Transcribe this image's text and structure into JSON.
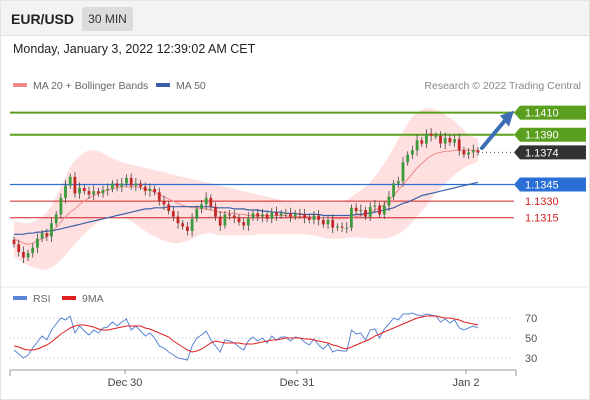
{
  "header": {
    "symbol": "EUR/USD",
    "timeframe": "30 MIN"
  },
  "datetime": "Monday, January 3, 2022 12:39:02 AM CET",
  "legend": {
    "ma20": {
      "label": "MA 20 + Bollinger Bands",
      "color": "#f08a8a"
    },
    "ma50": {
      "label": "MA 50",
      "color": "#3a5fa8"
    },
    "rsi": {
      "label": "RSI",
      "color": "#5b84d6"
    },
    "ma9": {
      "label": "9MA",
      "color": "#e02020"
    }
  },
  "credit": "Research © 2022 Trading Central",
  "chart_data": {
    "type": "candlestick",
    "y_range": [
      1.1256,
      1.1425
    ],
    "levels": [
      {
        "value": 1.141,
        "label": "1.1410",
        "kind": "resistance",
        "color": "#5aa01e"
      },
      {
        "value": 1.139,
        "label": "1.1390",
        "kind": "resistance",
        "color": "#5aa01e"
      },
      {
        "value": 1.1374,
        "label": "1.1374",
        "kind": "last",
        "color": "#333333"
      },
      {
        "value": 1.1345,
        "label": "1.1345",
        "kind": "pivot",
        "color": "#2a6fd6"
      },
      {
        "value": 1.133,
        "label": "1.1330",
        "kind": "support",
        "color": "#d42020"
      },
      {
        "value": 1.1315,
        "label": "1.1315",
        "kind": "support",
        "color": "#d42020"
      }
    ],
    "closes": [
      1.1291,
      1.1284,
      1.1279,
      1.1283,
      1.1288,
      1.1296,
      1.1301,
      1.1298,
      1.131,
      1.1318,
      1.1333,
      1.1344,
      1.1352,
      1.1337,
      1.1342,
      1.1339,
      1.1336,
      1.1339,
      1.1337,
      1.134,
      1.1341,
      1.1346,
      1.1343,
      1.1346,
      1.1351,
      1.1344,
      1.1346,
      1.1343,
      1.1339,
      1.1341,
      1.1338,
      1.133,
      1.1327,
      1.1321,
      1.1316,
      1.131,
      1.1307,
      1.1303,
      1.1314,
      1.1323,
      1.1327,
      1.1333,
      1.1325,
      1.1316,
      1.1308,
      1.1318,
      1.1317,
      1.1315,
      1.1311,
      1.1308,
      1.1315,
      1.1319,
      1.1316,
      1.1318,
      1.1314,
      1.132,
      1.1317,
      1.1319,
      1.1319,
      1.1316,
      1.1319,
      1.1318,
      1.1315,
      1.1313,
      1.1317,
      1.1313,
      1.1309,
      1.1313,
      1.1306,
      1.1307,
      1.1306,
      1.1306,
      1.1324,
      1.1321,
      1.1322,
      1.1316,
      1.1325,
      1.1326,
      1.1318,
      1.1326,
      1.1334,
      1.1346,
      1.1348,
      1.1365,
      1.1372,
      1.1376,
      1.1385,
      1.1382,
      1.1391,
      1.1389,
      1.1389,
      1.1382,
      1.1387,
      1.1383,
      1.1386,
      1.1376,
      1.1372,
      1.1374,
      1.1376,
      1.1374
    ],
    "ma20": [
      1.1296,
      1.1294,
      1.1292,
      1.1291,
      1.1292,
      1.1294,
      1.1296,
      1.1298,
      1.1302,
      1.1306,
      1.1311,
      1.1316,
      1.132,
      1.1323,
      1.1327,
      1.133,
      1.1333,
      1.1335,
      1.1337,
      1.1339,
      1.134,
      1.1341,
      1.1342,
      1.1343,
      1.1343,
      1.1343,
      1.1343,
      1.1342,
      1.1341,
      1.134,
      1.1338,
      1.1336,
      1.1334,
      1.1332,
      1.133,
      1.1328,
      1.1326,
      1.1325,
      1.1324,
      1.1324,
      1.1323,
      1.1323,
      1.1322,
      1.1321,
      1.132,
      1.132,
      1.1319,
      1.1319,
      1.1318,
      1.1318,
      1.1317,
      1.1317,
      1.1317,
      1.1317,
      1.1317,
      1.1317,
      1.1317,
      1.1317,
      1.1317,
      1.1316,
      1.1316,
      1.1316,
      1.1316,
      1.1316,
      1.1315,
      1.1315,
      1.1315,
      1.1315,
      1.1314,
      1.1314,
      1.1314,
      1.1314,
      1.1315,
      1.1316,
      1.1317,
      1.1318,
      1.132,
      1.1322,
      1.1324,
      1.1327,
      1.1331,
      1.1335,
      1.134,
      1.1345,
      1.135,
      1.1355,
      1.136,
      1.1364,
      1.1368,
      1.1371,
      1.1373,
      1.1374,
      1.1375,
      1.1375,
      1.1376,
      1.1376,
      1.1376,
      1.1376,
      1.1376,
      1.1376
    ],
    "bb_upper": [
      1.1312,
      1.1311,
      1.131,
      1.131,
      1.1311,
      1.1313,
      1.1316,
      1.132,
      1.1326,
      1.1334,
      1.1343,
      1.1352,
      1.1361,
      1.1367,
      1.1371,
      1.1374,
      1.1376,
      1.1376,
      1.1375,
      1.1373,
      1.1371,
      1.1369,
      1.1367,
      1.1365,
      1.1364,
      1.1363,
      1.1362,
      1.1361,
      1.136,
      1.1359,
      1.1358,
      1.1357,
      1.1356,
      1.1355,
      1.1354,
      1.1353,
      1.1352,
      1.1351,
      1.135,
      1.1349,
      1.1348,
      1.1347,
      1.1346,
      1.1345,
      1.1344,
      1.1343,
      1.1342,
      1.1341,
      1.134,
      1.1339,
      1.1338,
      1.1337,
      1.1336,
      1.1335,
      1.1334,
      1.1333,
      1.1332,
      1.1331,
      1.133,
      1.133,
      1.1329,
      1.1329,
      1.1329,
      1.1329,
      1.1329,
      1.1329,
      1.1329,
      1.1329,
      1.1329,
      1.1329,
      1.133,
      1.1331,
      1.1334,
      1.1337,
      1.134,
      1.1343,
      1.1347,
      1.1352,
      1.1358,
      1.1364,
      1.1371,
      1.1378,
      1.1386,
      1.1393,
      1.14,
      1.1406,
      1.141,
      1.1413,
      1.1414,
      1.1414,
      1.1413,
      1.1411,
      1.1408,
      1.1405,
      1.1402,
      1.1398,
      1.1394,
      1.139,
      1.1388,
      1.1386
    ],
    "bb_lower": [
      1.128,
      1.1277,
      1.1274,
      1.1272,
      1.127,
      1.1269,
      1.1268,
      1.1268,
      1.127,
      1.1273,
      1.1277,
      1.1281,
      1.1286,
      1.1291,
      1.1296,
      1.13,
      1.1304,
      1.1308,
      1.1311,
      1.1314,
      1.1316,
      1.1317,
      1.1317,
      1.1316,
      1.1314,
      1.1312,
      1.1309,
      1.1306,
      1.1303,
      1.13,
      1.1298,
      1.1296,
      1.1294,
      1.1293,
      1.1292,
      1.1292,
      1.1293,
      1.1294,
      1.1296,
      1.1298,
      1.13,
      1.1301,
      1.1301,
      1.13,
      1.1299,
      1.1299,
      1.1299,
      1.1299,
      1.1299,
      1.1299,
      1.1299,
      1.1299,
      1.13,
      1.13,
      1.13,
      1.13,
      1.13,
      1.13,
      1.13,
      1.13,
      1.13,
      1.13,
      1.13,
      1.1299,
      1.1299,
      1.1298,
      1.1297,
      1.1296,
      1.1296,
      1.1296,
      1.1296,
      1.1297,
      1.1297,
      1.1297,
      1.1297,
      1.1297,
      1.1296,
      1.1296,
      1.1296,
      1.1296,
      1.1297,
      1.1298,
      1.13,
      1.1303,
      1.1307,
      1.1311,
      1.1316,
      1.1321,
      1.1326,
      1.1332,
      1.1337,
      1.1342,
      1.1346,
      1.135,
      1.1354,
      1.1357,
      1.136,
      1.1362,
      1.1364,
      1.1366
    ],
    "ma50": [
      1.13,
      1.13,
      1.13,
      1.1301,
      1.1301,
      1.1302,
      1.1302,
      1.1303,
      1.1303,
      1.1304,
      1.1305,
      1.1306,
      1.1307,
      1.1308,
      1.1309,
      1.131,
      1.1311,
      1.1312,
      1.1313,
      1.1314,
      1.1315,
      1.1316,
      1.1317,
      1.1318,
      1.1319,
      1.132,
      1.1321,
      1.1322,
      1.1323,
      1.1323,
      1.1324,
      1.1324,
      1.1324,
      1.1325,
      1.1325,
      1.1325,
      1.1325,
      1.1325,
      1.1325,
      1.1325,
      1.1325,
      1.1325,
      1.1325,
      1.1324,
      1.1324,
      1.1324,
      1.1324,
      1.1323,
      1.1323,
      1.1323,
      1.1322,
      1.1322,
      1.1322,
      1.1321,
      1.1321,
      1.132,
      1.132,
      1.132,
      1.1319,
      1.1319,
      1.1319,
      1.1318,
      1.1318,
      1.1318,
      1.1318,
      1.1318,
      1.1317,
      1.1317,
      1.1317,
      1.1317,
      1.1317,
      1.1317,
      1.1317,
      1.1318,
      1.1318,
      1.1319,
      1.1319,
      1.132,
      1.1321,
      1.1322,
      1.1323,
      1.1324,
      1.1326,
      1.1328,
      1.1329,
      1.1331,
      1.1333,
      1.1335,
      1.1336,
      1.1337,
      1.1338,
      1.1339,
      1.134,
      1.1341,
      1.1342,
      1.1343,
      1.1344,
      1.1345,
      1.1346,
      1.1347
    ],
    "rsi": [
      38,
      34,
      30,
      33,
      40,
      46,
      52,
      48,
      58,
      64,
      70,
      68,
      72,
      55,
      62,
      57,
      53,
      58,
      55,
      60,
      61,
      66,
      62,
      66,
      69,
      58,
      62,
      57,
      52,
      55,
      50,
      42,
      40,
      36,
      33,
      30,
      29,
      28,
      42,
      50,
      53,
      57,
      48,
      42,
      36,
      48,
      47,
      45,
      41,
      38,
      47,
      51,
      47,
      50,
      45,
      52,
      48,
      51,
      51,
      47,
      51,
      50,
      46,
      43,
      49,
      43,
      39,
      44,
      36,
      38,
      37,
      37,
      58,
      54,
      55,
      48,
      58,
      59,
      50,
      59,
      64,
      70,
      68,
      74,
      74,
      75,
      73,
      72,
      74,
      73,
      72,
      66,
      69,
      65,
      68,
      60,
      58,
      60,
      62,
      60
    ],
    "rsi_ma": [
      42,
      41,
      39,
      38,
      38,
      39,
      41,
      43,
      46,
      50,
      54,
      57,
      60,
      62,
      63,
      63,
      62,
      61,
      59,
      58,
      58,
      59,
      60,
      61,
      62,
      62,
      62,
      62,
      60,
      59,
      57,
      55,
      53,
      51,
      47,
      44,
      41,
      38,
      36,
      37,
      39,
      42,
      45,
      47,
      46,
      45,
      45,
      45,
      45,
      44,
      44,
      44,
      45,
      46,
      47,
      48,
      48,
      49,
      50,
      50,
      50,
      50,
      49,
      49,
      48,
      47,
      46,
      45,
      43,
      42,
      40,
      39,
      41,
      43,
      45,
      47,
      49,
      52,
      54,
      56,
      58,
      60,
      62,
      64,
      66,
      68,
      70,
      71,
      72,
      72,
      72,
      71,
      70,
      70,
      69,
      68,
      66,
      65,
      64,
      63
    ],
    "rsi_levels": [
      70,
      50,
      30
    ],
    "x_labels": [
      "Dec 30",
      "Dec 31",
      "Jan 2"
    ],
    "forecast_arrow": {
      "from": 1.1378,
      "to": 1.141
    }
  }
}
